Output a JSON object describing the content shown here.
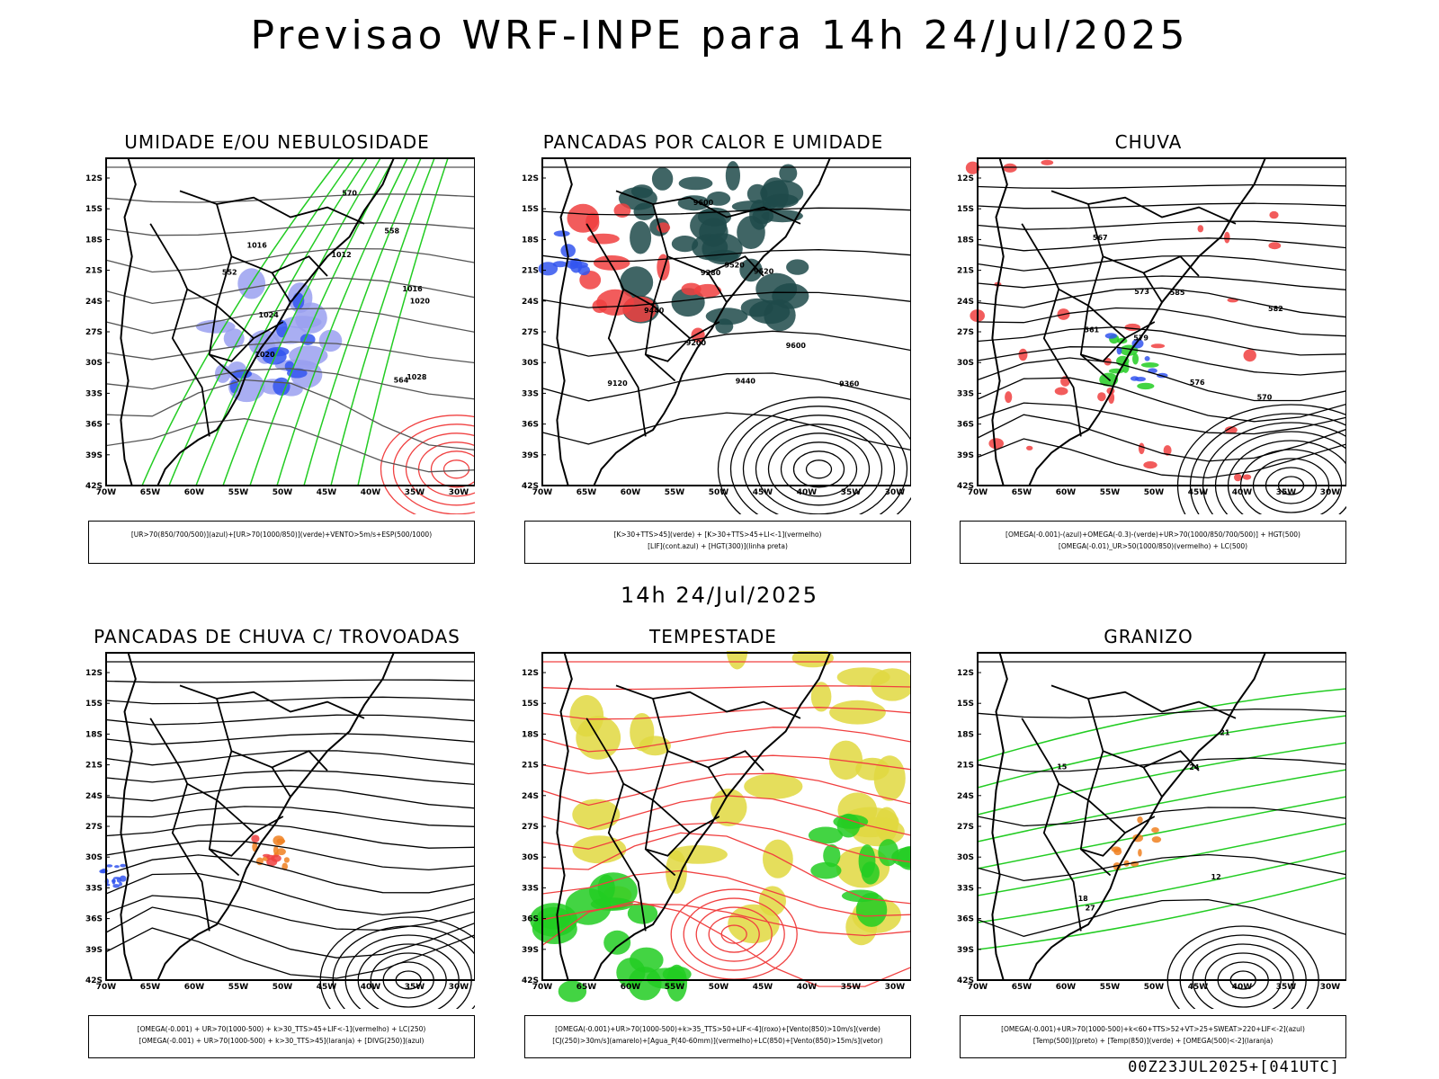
{
  "main_title": "Previsao WRF-INPE  para 14h 24/Jul/2025",
  "mid_title": "14h 24/Jul/2025",
  "footer": "00Z23JUL2025+[041UTC]",
  "lat_labels": [
    "12S",
    "15S",
    "18S",
    "21S",
    "24S",
    "27S",
    "30S",
    "33S",
    "36S",
    "39S",
    "42S"
  ],
  "lon_labels": [
    "70W",
    "65W",
    "60W",
    "55W",
    "50W",
    "45W",
    "40W",
    "35W",
    "30W"
  ],
  "colors": {
    "red": "#f04040",
    "green": "#22cc22",
    "blue": "#3355ee",
    "lavender": "#9aa0f0",
    "teal": "#1f4a4a",
    "yellow": "#e0d840",
    "orange": "#f08020"
  },
  "panels": [
    {
      "title": "UMIDADE E/OU NEBULOSIDADE",
      "legend": [
        "[UR>70(850/700/500)](azul)+[UR>70(1000/850)](verde)+VENTO>5m/s+ESP(500/1000)"
      ]
    },
    {
      "title": "PANCADAS POR CALOR E UMIDADE",
      "legend": [
        "[K>30+TTS>45](verde) + [K>30+TTS>45+LI<-1](vermelho)",
        "[LIF](cont.azul) + [HGT(300)](linha preta)"
      ]
    },
    {
      "title": "CHUVA",
      "legend": [
        "[OMEGA(-0.001)-(azul)+OMEGA(-0.3)-(verde)+UR>70(1000/850/700/500)] + HGT(500)",
        "[OMEGA(-0.01)_UR>50(1000/850)(vermelho) + LC(500)"
      ]
    },
    {
      "title": "PANCADAS DE CHUVA C/ TROVOADAS",
      "legend": [
        "[OMEGA(-0.001) + UR>70(1000-500) + k>30_TTS>45+LIF<-1](vermelho) + LC(250)",
        "[OMEGA(-0.001) + UR>70(1000-500) + k>30_TTS>45](laranja) + [DIVG(250)](azul)"
      ]
    },
    {
      "title": "TEMPESTADE",
      "legend": [
        "[OMEGA(-0.001)+UR>70(1000-500)+k>35_TTS>50+LIF<-4](roxo)+[Vento(850)>10m/s](verde)",
        "[CJ(250)>30m/s](amarelo)+[Agua_P(40-60mm)](vermelho)+LC(850)+[Vento(850)>15m/s](vetor)"
      ]
    },
    {
      "title": "GRANIZO",
      "legend": [
        "[OMEGA(-0.001)+UR>70(1000-500)+k<60+TTS>52+VT>25+SWEAT>220+LIF<-2](azul)",
        "[Temp(500)](preto) + [Temp(850)](verde) + [OMEGA(500)<-2](laranja)"
      ]
    }
  ],
  "contour_labels": {
    "p1": [
      "1016",
      "1016",
      "1012",
      "1020",
      "1024",
      "1028",
      "1020",
      "570",
      "564",
      "558",
      "552"
    ],
    "p2": [
      "9600",
      "9600",
      "9520",
      "9520",
      "9440",
      "9440",
      "9360",
      "9280",
      "9200",
      "9120"
    ],
    "p3": [
      "585",
      "582",
      "579",
      "576",
      "573",
      "570",
      "567",
      "561"
    ],
    "p6": [
      "12",
      "15",
      "18",
      "21",
      "24",
      "27"
    ]
  }
}
